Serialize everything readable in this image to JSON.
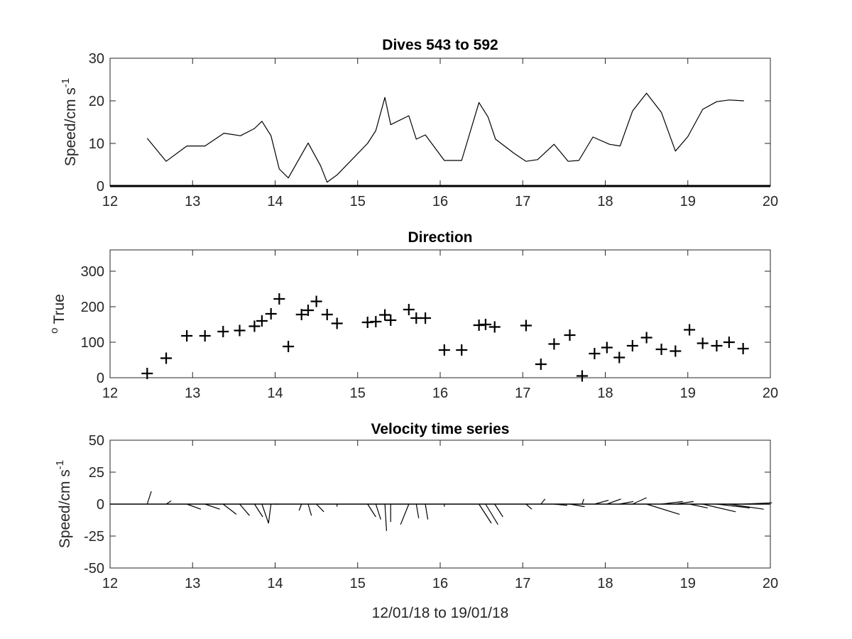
{
  "chart_data": [
    {
      "type": "line",
      "title": "Dives 543 to 592",
      "ylabel": "Speed/cm s",
      "ylabel_exponent": "-1",
      "xlim": [
        12,
        20
      ],
      "ylim": [
        0,
        30
      ],
      "xticks": [
        "12",
        "13",
        "14",
        "15",
        "16",
        "17",
        "18",
        "19",
        "20"
      ],
      "yticks": [
        "0",
        "10",
        "20",
        "30"
      ],
      "line_color": "#000000",
      "x": [
        12.45,
        12.68,
        12.93,
        13.15,
        13.38,
        13.58,
        13.75,
        13.84,
        13.95,
        14.05,
        14.16,
        14.4,
        14.55,
        14.63,
        14.75,
        15.12,
        15.22,
        15.33,
        15.4,
        15.62,
        15.71,
        15.82,
        16.05,
        16.26,
        16.47,
        16.58,
        16.67,
        16.9,
        17.04,
        17.18,
        17.38,
        17.55,
        17.68,
        17.85,
        18.05,
        18.18,
        18.33,
        18.5,
        18.68,
        18.85,
        19.0,
        19.18,
        19.35,
        19.5,
        19.68
      ],
      "y": [
        11.2,
        5.8,
        9.4,
        9.4,
        12.4,
        11.8,
        13.5,
        15.2,
        11.8,
        4.0,
        1.9,
        10.1,
        4.8,
        0.9,
        2.6,
        10.0,
        13.0,
        20.8,
        14.4,
        16.5,
        11.0,
        12.0,
        6.0,
        6.0,
        19.6,
        16.2,
        11.0,
        7.6,
        5.8,
        6.2,
        9.8,
        5.8,
        6.0,
        11.5,
        9.8,
        9.4,
        17.6,
        21.8,
        17.3,
        8.2,
        11.6,
        18.0,
        19.8,
        20.2,
        20.0
      ]
    },
    {
      "type": "scatter",
      "title": "Direction",
      "ylabel": "True",
      "ylabel_superscript": "o",
      "xlim": [
        12,
        20
      ],
      "ylim": [
        0,
        360
      ],
      "xticks": [
        "12",
        "13",
        "14",
        "15",
        "16",
        "17",
        "18",
        "19",
        "20"
      ],
      "yticks": [
        "0",
        "100",
        "200",
        "300"
      ],
      "marker": "+",
      "marker_color": "#000000",
      "x": [
        12.45,
        12.68,
        12.93,
        13.15,
        13.37,
        13.57,
        13.75,
        13.84,
        13.95,
        14.05,
        14.16,
        14.32,
        14.4,
        14.5,
        14.63,
        14.75,
        15.12,
        15.22,
        15.33,
        15.4,
        15.62,
        15.71,
        15.82,
        16.05,
        16.26,
        16.47,
        16.55,
        16.66,
        17.04,
        17.22,
        17.38,
        17.57,
        17.72,
        17.87,
        18.02,
        18.17,
        18.33,
        18.5,
        18.68,
        18.85,
        19.02,
        19.18,
        19.35,
        19.5,
        19.67
      ],
      "y": [
        12,
        55,
        118,
        118,
        130,
        133,
        145,
        160,
        180,
        222,
        88,
        178,
        190,
        215,
        178,
        153,
        156,
        158,
        177,
        162,
        192,
        168,
        168,
        78,
        78,
        148,
        150,
        143,
        147,
        38,
        95,
        120,
        5,
        68,
        85,
        57,
        90,
        113,
        80,
        75,
        135,
        97,
        90,
        100,
        82
      ]
    },
    {
      "type": "stick",
      "title": "Velocity time series",
      "ylabel": "Speed/cm s",
      "ylabel_exponent": "-1",
      "xlabel": "12/01/18 to 19/01/18",
      "xlim": [
        12,
        20
      ],
      "ylim": [
        -50,
        50
      ],
      "xticks": [
        "12",
        "13",
        "14",
        "15",
        "16",
        "17",
        "18",
        "19",
        "20"
      ],
      "yticks": [
        "-50",
        "-25",
        "0",
        "25",
        "50"
      ],
      "stick_color": "#000000",
      "sticks": [
        {
          "x": 12.45,
          "dx": 0.05,
          "dy": 10
        },
        {
          "x": 12.68,
          "dx": 0.06,
          "dy": 2.5
        },
        {
          "x": 12.93,
          "dx": 0.17,
          "dy": -4
        },
        {
          "x": 13.15,
          "dx": 0.18,
          "dy": -4
        },
        {
          "x": 13.37,
          "dx": 0.16,
          "dy": -8
        },
        {
          "x": 13.57,
          "dx": 0.12,
          "dy": -9
        },
        {
          "x": 13.75,
          "dx": 0.1,
          "dy": -10
        },
        {
          "x": 13.84,
          "dx": 0.08,
          "dy": -15
        },
        {
          "x": 13.95,
          "dx": -0.03,
          "dy": -15
        },
        {
          "x": 14.05,
          "dx": -0.06,
          "dy": 0
        },
        {
          "x": 14.32,
          "dx": -0.03,
          "dy": -5
        },
        {
          "x": 14.4,
          "dx": 0.04,
          "dy": -9
        },
        {
          "x": 14.5,
          "dx": 0.09,
          "dy": -6
        },
        {
          "x": 14.75,
          "dx": 0.0,
          "dy": -2
        },
        {
          "x": 15.12,
          "dx": 0.1,
          "dy": -10
        },
        {
          "x": 15.22,
          "dx": 0.06,
          "dy": -12
        },
        {
          "x": 15.33,
          "dx": 0.02,
          "dy": -21
        },
        {
          "x": 15.4,
          "dx": 0.0,
          "dy": -14
        },
        {
          "x": 15.62,
          "dx": -0.1,
          "dy": -16
        },
        {
          "x": 15.71,
          "dx": 0.03,
          "dy": -11
        },
        {
          "x": 15.82,
          "dx": 0.03,
          "dy": -12
        },
        {
          "x": 16.05,
          "dx": 0.0,
          "dy": -2
        },
        {
          "x": 16.47,
          "dx": 0.15,
          "dy": -15
        },
        {
          "x": 16.55,
          "dx": 0.15,
          "dy": -16
        },
        {
          "x": 16.66,
          "dx": 0.1,
          "dy": -10
        },
        {
          "x": 17.04,
          "dx": 0.07,
          "dy": -4
        },
        {
          "x": 17.22,
          "dx": 0.05,
          "dy": 4
        },
        {
          "x": 17.38,
          "dx": 0.16,
          "dy": -1
        },
        {
          "x": 17.57,
          "dx": 0.18,
          "dy": -2
        },
        {
          "x": 17.72,
          "dx": 0.02,
          "dy": 4
        },
        {
          "x": 17.87,
          "dx": 0.17,
          "dy": 3
        },
        {
          "x": 18.02,
          "dx": 0.17,
          "dy": 4
        },
        {
          "x": 18.17,
          "dx": 0.17,
          "dy": 2
        },
        {
          "x": 18.33,
          "dx": 0.17,
          "dy": 5
        },
        {
          "x": 18.5,
          "dx": 0.4,
          "dy": -8
        },
        {
          "x": 18.68,
          "dx": 0.26,
          "dy": 2
        },
        {
          "x": 18.85,
          "dx": 0.22,
          "dy": 2
        },
        {
          "x": 19.02,
          "dx": 0.22,
          "dy": -3
        },
        {
          "x": 19.18,
          "dx": 0.4,
          "dy": -6
        },
        {
          "x": 19.35,
          "dx": 0.4,
          "dy": -3
        },
        {
          "x": 19.5,
          "dx": 0.42,
          "dy": -4
        },
        {
          "x": 19.67,
          "dx": 0.35,
          "dy": 1
        }
      ]
    }
  ]
}
